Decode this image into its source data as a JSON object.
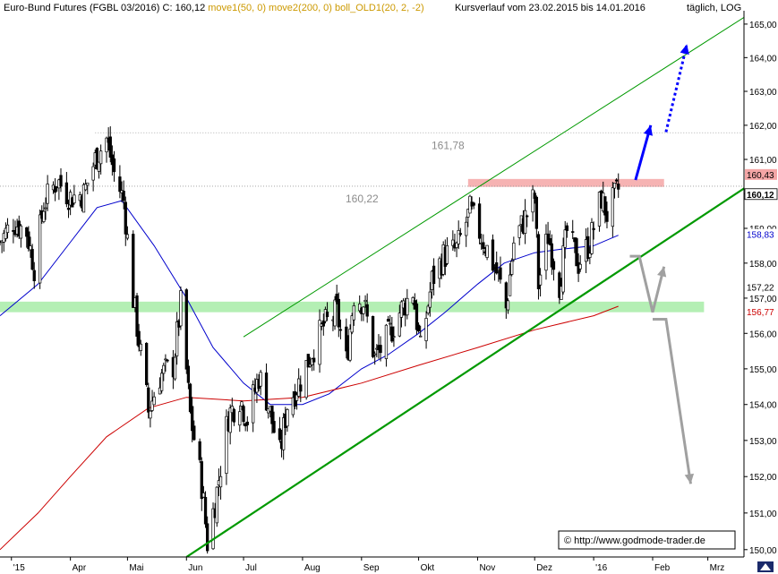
{
  "header": {
    "instrument": "Euro-Bund Futures (FGBL 03/2016) C: 160,12",
    "ind1": "move1(50, 0)",
    "ind2": "move2(200, 0)",
    "ind3": "boll_OLD1(20, 2, -2)",
    "range": "Kursverlauf vom 23.02.2015 bis 14.01.2016",
    "scale": "täglich, LOG"
  },
  "copyright": "© http://www.godmode-trader.de",
  "colors": {
    "price": "#000000",
    "ma50": "#0000cc",
    "ma200": "#cc0000",
    "channel": "#009900",
    "support_zone": "#a7eca7",
    "resistance_zone": "#f4a6a6",
    "bull_arrow": "#0000ff",
    "bear_arrow": "#a0a0a0",
    "ind1_text": "#cc9900",
    "ind2_text": "#cc9900",
    "ind3_text": "#cc9900"
  },
  "chart_data": {
    "type": "line",
    "title": "Euro-Bund Futures (FGBL 03/2016)",
    "scale": "log",
    "ylim": [
      149.8,
      165.4
    ],
    "xlim": [
      "2015-02-23",
      "2016-03-20"
    ],
    "x_ticks": [
      {
        "date": "2015-03-01",
        "label": "'15"
      },
      {
        "date": "2015-04-01",
        "label": "Apr"
      },
      {
        "date": "2015-05-01",
        "label": "Mai"
      },
      {
        "date": "2015-06-01",
        "label": "Jun"
      },
      {
        "date": "2015-07-01",
        "label": "Jul"
      },
      {
        "date": "2015-08-01",
        "label": "Aug"
      },
      {
        "date": "2015-09-01",
        "label": "Sep"
      },
      {
        "date": "2015-10-01",
        "label": "Okt"
      },
      {
        "date": "2015-11-01",
        "label": "Nov"
      },
      {
        "date": "2015-12-01",
        "label": "Dez"
      },
      {
        "date": "2016-01-01",
        "label": "'16"
      },
      {
        "date": "2016-02-01",
        "label": "Feb"
      },
      {
        "date": "2016-03-01",
        "label": "Mrz"
      }
    ],
    "y_ticks": [
      {
        "value": 150,
        "label": "150,00"
      },
      {
        "value": 151,
        "label": "151,00"
      },
      {
        "value": 152,
        "label": "152,00"
      },
      {
        "value": 153,
        "label": "153,00"
      },
      {
        "value": 154,
        "label": "154,00"
      },
      {
        "value": 155,
        "label": "155,00"
      },
      {
        "value": 156,
        "label": "156,00"
      },
      {
        "value": 157,
        "label": "157,00"
      },
      {
        "value": 158,
        "label": "158,00"
      },
      {
        "value": 159,
        "label": "159,00"
      },
      {
        "value": 160,
        "label": "160,00"
      },
      {
        "value": 161,
        "label": "161,00"
      },
      {
        "value": 162,
        "label": "162,00"
      },
      {
        "value": 163,
        "label": "163,00"
      },
      {
        "value": 164,
        "label": "164,00"
      },
      {
        "value": 165,
        "label": "165,00"
      }
    ],
    "series": [
      {
        "name": "price",
        "points": [
          [
            "2015-02-23",
            158.6
          ],
          [
            "2015-03-02",
            159.2
          ],
          [
            "2015-03-09",
            158.9
          ],
          [
            "2015-03-13",
            157.9
          ],
          [
            "2015-03-18",
            159.7
          ],
          [
            "2015-03-25",
            160.4
          ],
          [
            "2015-04-01",
            159.9
          ],
          [
            "2015-04-08",
            160.0
          ],
          [
            "2015-04-14",
            161.0
          ],
          [
            "2015-04-20",
            161.6
          ],
          [
            "2015-04-24",
            160.6
          ],
          [
            "2015-04-29",
            159.8
          ],
          [
            "2015-05-04",
            157.0
          ],
          [
            "2015-05-08",
            155.4
          ],
          [
            "2015-05-12",
            153.8
          ],
          [
            "2015-05-18",
            154.8
          ],
          [
            "2015-05-25",
            155.1
          ],
          [
            "2015-05-29",
            156.8
          ],
          [
            "2015-06-03",
            153.7
          ],
          [
            "2015-06-09",
            151.8
          ],
          [
            "2015-06-12",
            150.2
          ],
          [
            "2015-06-17",
            151.6
          ],
          [
            "2015-06-23",
            153.7
          ],
          [
            "2015-06-29",
            154.2
          ],
          [
            "2015-07-03",
            153.6
          ],
          [
            "2015-07-09",
            154.8
          ],
          [
            "2015-07-13",
            154.2
          ],
          [
            "2015-07-20",
            152.6
          ],
          [
            "2015-07-24",
            154.0
          ],
          [
            "2015-07-31",
            154.7
          ],
          [
            "2015-08-06",
            155.5
          ],
          [
            "2015-08-12",
            156.2
          ],
          [
            "2015-08-19",
            156.6
          ],
          [
            "2015-08-24",
            155.2
          ],
          [
            "2015-08-28",
            157.1
          ],
          [
            "2015-09-02",
            156.9
          ],
          [
            "2015-09-08",
            155.3
          ],
          [
            "2015-09-14",
            155.8
          ],
          [
            "2015-09-21",
            156.6
          ],
          [
            "2015-09-28",
            157.2
          ],
          [
            "2015-10-02",
            155.5
          ],
          [
            "2015-10-08",
            157.5
          ],
          [
            "2015-10-14",
            158.2
          ],
          [
            "2015-10-21",
            158.4
          ],
          [
            "2015-10-28",
            159.5
          ],
          [
            "2015-11-02",
            158.9
          ],
          [
            "2015-11-06",
            158.4
          ],
          [
            "2015-11-12",
            157.6
          ],
          [
            "2015-11-16",
            156.7
          ],
          [
            "2015-11-20",
            158.6
          ],
          [
            "2015-11-26",
            159.3
          ],
          [
            "2015-12-01",
            159.9
          ],
          [
            "2015-12-03",
            157.4
          ],
          [
            "2015-12-08",
            158.8
          ],
          [
            "2015-12-14",
            157.4
          ],
          [
            "2015-12-18",
            158.9
          ],
          [
            "2015-12-24",
            158.0
          ],
          [
            "2015-12-30",
            158.6
          ],
          [
            "2016-01-05",
            159.9
          ],
          [
            "2016-01-08",
            159.4
          ],
          [
            "2016-01-14",
            160.12
          ]
        ]
      },
      {
        "name": "move1(50, 0)",
        "points": [
          [
            "2015-02-23",
            156.5
          ],
          [
            "2015-03-15",
            157.4
          ],
          [
            "2015-04-01",
            158.6
          ],
          [
            "2015-04-15",
            159.6
          ],
          [
            "2015-04-28",
            159.8
          ],
          [
            "2015-05-15",
            158.5
          ],
          [
            "2015-06-01",
            157.0
          ],
          [
            "2015-06-15",
            155.6
          ],
          [
            "2015-07-01",
            154.6
          ],
          [
            "2015-07-15",
            154.0
          ],
          [
            "2015-08-01",
            154.0
          ],
          [
            "2015-08-15",
            154.3
          ],
          [
            "2015-09-01",
            155.0
          ],
          [
            "2015-09-15",
            155.4
          ],
          [
            "2015-10-01",
            156.0
          ],
          [
            "2015-10-15",
            156.6
          ],
          [
            "2015-11-01",
            157.4
          ],
          [
            "2015-11-15",
            158.0
          ],
          [
            "2015-12-01",
            158.3
          ],
          [
            "2015-12-15",
            158.4
          ],
          [
            "2016-01-01",
            158.5
          ],
          [
            "2016-01-14",
            158.8
          ]
        ]
      },
      {
        "name": "move2(200, 0)",
        "points": [
          [
            "2015-02-23",
            150.0
          ],
          [
            "2015-03-15",
            151.0
          ],
          [
            "2015-04-01",
            152.0
          ],
          [
            "2015-04-20",
            153.1
          ],
          [
            "2015-05-12",
            153.9
          ],
          [
            "2015-06-01",
            154.2
          ],
          [
            "2015-07-01",
            154.1
          ],
          [
            "2015-08-01",
            154.2
          ],
          [
            "2015-09-01",
            154.6
          ],
          [
            "2015-10-01",
            155.1
          ],
          [
            "2015-11-01",
            155.6
          ],
          [
            "2015-12-01",
            156.1
          ],
          [
            "2016-01-01",
            156.5
          ],
          [
            "2016-01-14",
            156.77
          ]
        ]
      }
    ],
    "channel_lines": [
      {
        "name": "upper",
        "from": [
          "2015-07-01",
          155.9
        ],
        "to": [
          "2016-03-20",
          165.2
        ]
      },
      {
        "name": "lower",
        "from": [
          "2015-06-01",
          149.8
        ],
        "to": [
          "2016-03-24",
          160.3
        ]
      }
    ],
    "zones": [
      {
        "name": "support",
        "y": [
          156.6,
          156.9
        ],
        "from": "2015-02-23",
        "to": "2016-02-28"
      },
      {
        "name": "resistance",
        "y": [
          160.2,
          160.43
        ],
        "from": "2015-10-27",
        "to": "2016-02-07"
      }
    ],
    "level_lines": [
      {
        "value": 161.78,
        "label": "161,78",
        "from": "2015-04-14",
        "to": "2016-03-20"
      },
      {
        "value": 160.22,
        "label": "160,22",
        "from": "2015-02-23",
        "to": "2016-03-20"
      }
    ],
    "arrows": [
      {
        "name": "bull-solid",
        "from": [
          "2016-01-23",
          160.4
        ],
        "to": [
          "2016-01-31",
          162.0
        ]
      },
      {
        "name": "bull-dotted",
        "from": [
          "2016-02-08",
          161.8
        ],
        "to": [
          "2016-02-19",
          164.4
        ]
      },
      {
        "name": "bear-gray",
        "path": [
          [
            "2016-01-20",
            158.2
          ],
          [
            "2016-01-25",
            158.2
          ],
          [
            "2016-02-01",
            156.6
          ],
          [
            "2016-02-07",
            157.9
          ]
        ]
      },
      {
        "name": "bear-gray-down",
        "path": [
          [
            "2016-02-01",
            156.4
          ],
          [
            "2016-02-08",
            156.4
          ],
          [
            "2016-02-21",
            151.8
          ]
        ]
      }
    ],
    "price_tags": [
      {
        "value": 160.43,
        "label": "160,43",
        "style": "resistance"
      },
      {
        "value": 160.12,
        "label": "160,12",
        "style": "close"
      },
      {
        "value": 158.83,
        "label": "158,83",
        "style": "ma50"
      },
      {
        "value": 157.22,
        "label": "157,22",
        "style": "plain"
      },
      {
        "value": 156.77,
        "label": "156,77",
        "style": "ma200"
      }
    ]
  }
}
